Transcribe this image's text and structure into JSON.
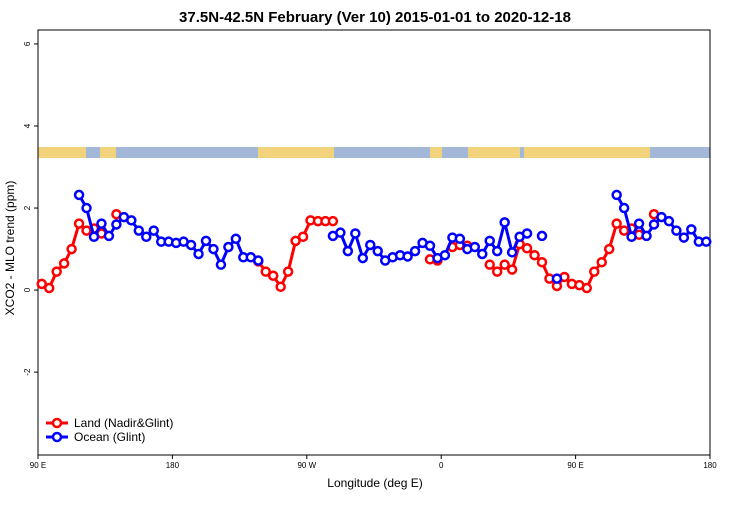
{
  "chart_data": {
    "type": "line",
    "title": "37.5N-42.5N February (Ver 10)   2015-01-01 to 2020-12-18",
    "x_label": "Longitude (deg E)",
    "y_label": "XCO2 - MLO trend (ppm)",
    "x": [
      92.5,
      97.5,
      102.5,
      107.5,
      112.5,
      117.5,
      122.5,
      127.5,
      132.5,
      137.5,
      142.5,
      147.5,
      152.5,
      157.5,
      162.5,
      167.5,
      172.5,
      177.5,
      182.5,
      187.5,
      192.5,
      197.5,
      202.5,
      207.5,
      212.5,
      217.5,
      222.5,
      227.5,
      232.5,
      237.5,
      242.5,
      247.5,
      252.5,
      257.5,
      262.5,
      267.5,
      272.5,
      277.5,
      282.5,
      287.5,
      292.5,
      297.5,
      302.5,
      307.5,
      312.5,
      317.5,
      322.5,
      327.5,
      332.5,
      337.5,
      342.5,
      347.5,
      352.5,
      357.5,
      362.5,
      367.5,
      372.5,
      377.5,
      382.5,
      387.5,
      392.5,
      397.5,
      402.5,
      407.5,
      412.5,
      417.5,
      422.5,
      427.5,
      432.5,
      437.5,
      442.5,
      447.5,
      452.5,
      457.5,
      462.5,
      467.5,
      472.5,
      477.5,
      482.5,
      487.5,
      492.5,
      497.5,
      502.5,
      507.5,
      512.5,
      517.5,
      522.5,
      527.5,
      532.5,
      537.5
    ],
    "series": [
      {
        "name": "Land (Nadir&Glint)",
        "color": "#ff0000",
        "values": [
          0.15,
          0.05,
          0.45,
          0.65,
          1.0,
          1.62,
          1.45,
          1.5,
          1.38,
          null,
          1.85,
          null,
          null,
          null,
          null,
          null,
          null,
          null,
          null,
          null,
          null,
          null,
          null,
          null,
          null,
          null,
          null,
          null,
          null,
          0.7,
          0.45,
          0.35,
          0.08,
          0.45,
          1.2,
          1.3,
          1.7,
          1.68,
          1.68,
          1.68,
          null,
          null,
          null,
          null,
          null,
          null,
          null,
          null,
          null,
          null,
          null,
          null,
          0.75,
          0.72,
          null,
          1.05,
          1.1,
          1.08,
          null,
          null,
          0.62,
          0.45,
          0.62,
          0.5,
          1.12,
          1.02,
          0.85,
          0.68,
          0.28,
          0.1,
          0.32,
          0.15,
          0.12,
          0.05,
          0.45,
          0.68,
          1.0,
          1.62,
          1.45,
          1.5,
          1.35,
          null,
          1.85,
          null,
          null,
          null,
          null,
          null,
          null,
          null
        ]
      },
      {
        "name": "Ocean (Glint)",
        "color": "#0000ff",
        "values": [
          null,
          null,
          null,
          null,
          null,
          2.32,
          2.0,
          1.3,
          1.62,
          1.32,
          1.6,
          1.78,
          1.7,
          1.45,
          1.3,
          1.45,
          1.18,
          1.18,
          1.15,
          1.18,
          1.1,
          0.88,
          1.2,
          1.0,
          0.62,
          1.05,
          1.25,
          0.8,
          0.8,
          0.72,
          null,
          null,
          null,
          null,
          null,
          null,
          null,
          null,
          null,
          1.32,
          1.4,
          0.95,
          1.38,
          0.78,
          1.1,
          0.95,
          0.72,
          0.8,
          0.85,
          0.82,
          0.95,
          1.15,
          1.08,
          0.78,
          0.85,
          1.28,
          1.25,
          1.0,
          1.05,
          0.88,
          1.2,
          0.95,
          1.65,
          0.92,
          1.3,
          1.38,
          null,
          1.32,
          null,
          0.28,
          null,
          null,
          null,
          null,
          null,
          null,
          null,
          2.32,
          2.0,
          1.3,
          1.62,
          1.32,
          1.6,
          1.78,
          1.68,
          1.45,
          1.28,
          1.48,
          1.18,
          1.18
        ]
      }
    ],
    "xlim": [
      90,
      540
    ],
    "xticks": [
      {
        "value": 90,
        "label": "90 E"
      },
      180,
      {
        "value": 270,
        "label": "90 W"
      },
      {
        "value": 360,
        "label": "0"
      },
      {
        "value": 450,
        "label": "90 E"
      },
      {
        "value": 540,
        "label": "180"
      }
    ],
    "ylim": [
      -4.02,
      6.34
    ],
    "yticks": [
      -2,
      0,
      2,
      4,
      6
    ],
    "legend": "bottom-left"
  }
}
